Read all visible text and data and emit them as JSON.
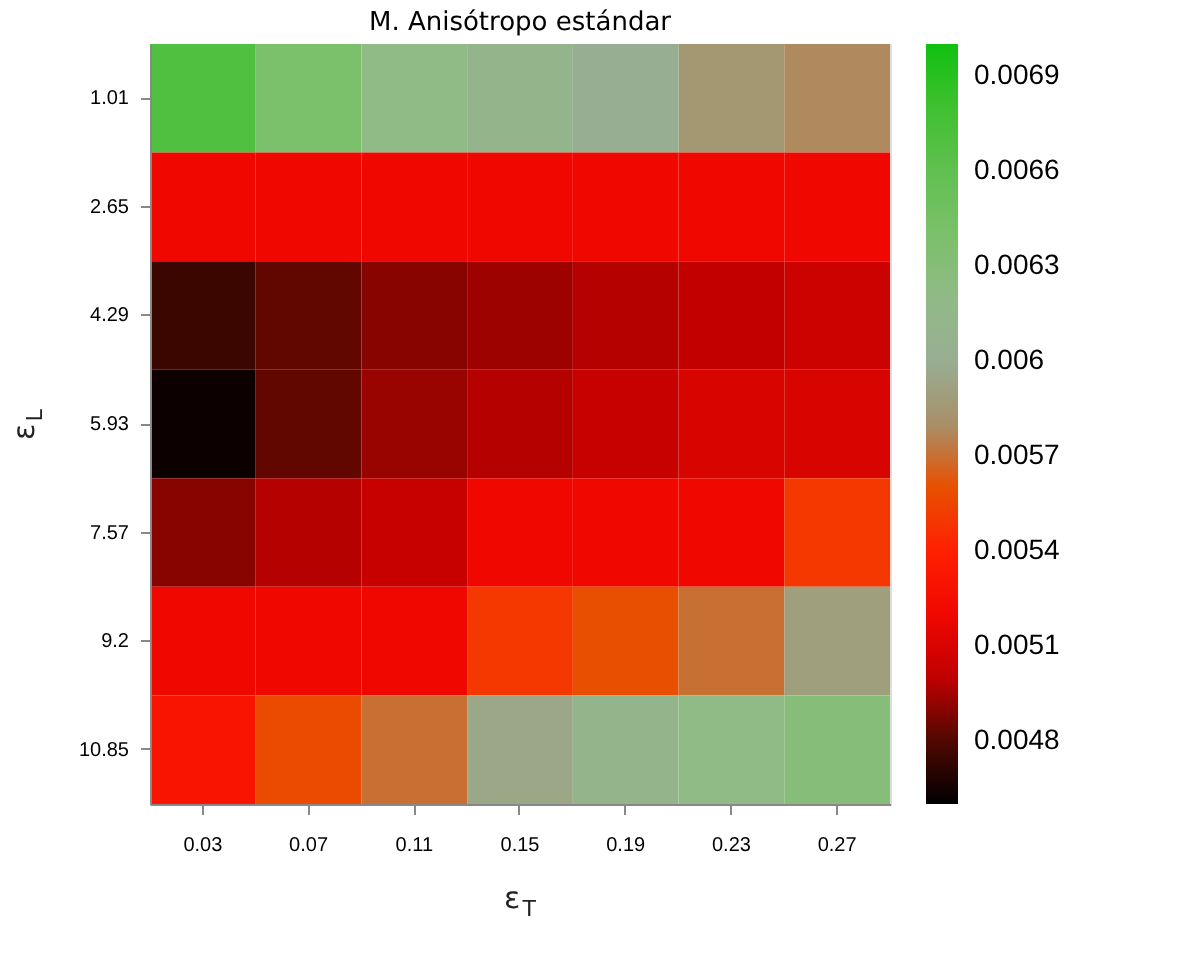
{
  "chart_data": {
    "type": "heatmap",
    "title": "M. Anisótropo estándar",
    "xlabel": "ε$_{T}$",
    "ylabel": "ε$_{L}$",
    "categories": [
      "0.03",
      "0.07",
      "0.11",
      "0.15",
      "0.19",
      "0.23",
      "0.27"
    ],
    "y_categories": [
      "1.01",
      "2.65",
      "4.29",
      "5.93",
      "7.57",
      "9.2",
      "10.85"
    ],
    "cells": [
      [
        0.0067,
        0.0064,
        0.0062,
        0.0061,
        0.006,
        0.00585,
        0.00578
      ],
      [
        0.0052,
        0.0052,
        0.0052,
        0.0052,
        0.0052,
        0.0052,
        0.0052
      ],
      [
        0.00475,
        0.00483,
        0.0049,
        0.00494,
        0.00498,
        0.00501,
        0.00505
      ],
      [
        0.00463,
        0.00483,
        0.00493,
        0.00498,
        0.00503,
        0.0051,
        0.0051
      ],
      [
        0.0049,
        0.00498,
        0.00503,
        0.0052,
        0.0052,
        0.0052,
        0.0055
      ],
      [
        0.0052,
        0.0052,
        0.0052,
        0.0055,
        0.0056,
        0.0057,
        0.0059
      ],
      [
        0.0053,
        0.00558,
        0.0057,
        0.00595,
        0.0061,
        0.0062,
        0.0063
      ]
    ],
    "clim": [
      0.0046,
      0.007
    ],
    "cticks": [
      0.0048,
      0.0051,
      0.0054,
      0.0057,
      0.006,
      0.0063,
      0.0066,
      0.0069
    ],
    "grid": false
  }
}
